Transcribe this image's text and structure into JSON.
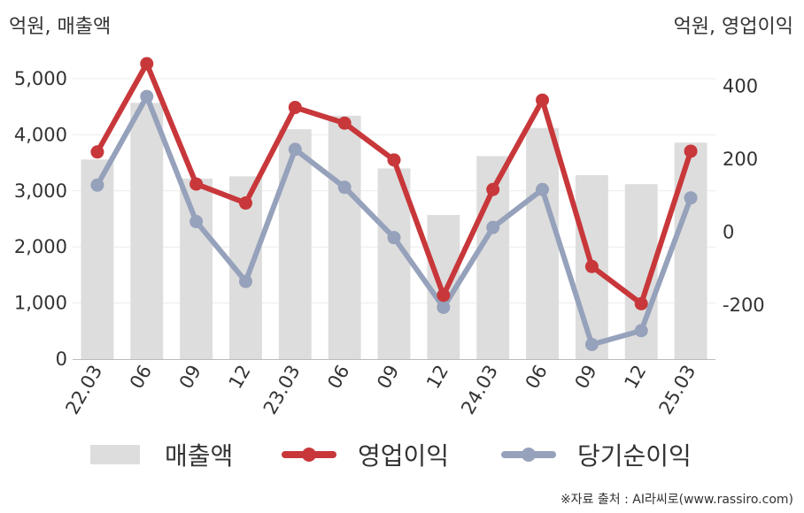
{
  "units": {
    "left": "억원, 매출액",
    "right": "억원, 영업이익"
  },
  "source": "※자료 출처 : AI라씨로(www.rassiro.com)",
  "colors": {
    "sales": "#dddddd",
    "operating": "#c8373a",
    "net": "#96a1bb",
    "grid": "#ececec",
    "axis": "#bbbbbb"
  },
  "chart_data": {
    "type": "bar",
    "categories": [
      "22.03",
      "06",
      "09",
      "12",
      "23.03",
      "06",
      "09",
      "12",
      "24.03",
      "06",
      "09",
      "12",
      "25.03"
    ],
    "left_axis": {
      "ylim": [
        0,
        5000
      ],
      "ticks": [
        0,
        1000,
        2000,
        3000,
        4000,
        5000
      ],
      "tick_labels": [
        "0",
        "1,000",
        "2,000",
        "3,000",
        "4,000",
        "5,000"
      ]
    },
    "right_axis": {
      "ylim": [
        -350,
        500
      ],
      "ticks": [
        -200,
        0,
        200,
        400
      ],
      "tick_labels": [
        "-200",
        "0",
        "200",
        "400"
      ]
    },
    "series": [
      {
        "name": "매출액",
        "type": "bar",
        "axis": "left",
        "values": [
          3560,
          4570,
          3220,
          3260,
          4100,
          4340,
          3400,
          2570,
          3620,
          4120,
          3280,
          3120,
          3860
        ]
      },
      {
        "name": "영업이익",
        "type": "line",
        "axis": "right",
        "values": [
          218,
          460,
          130,
          78,
          340,
          297,
          196,
          -175,
          115,
          360,
          -96,
          -198,
          220
        ]
      },
      {
        "name": "당기순이익",
        "type": "line",
        "axis": "right",
        "values": [
          127,
          370,
          27,
          -137,
          225,
          121,
          -17,
          -208,
          11,
          115,
          -310,
          -272,
          92
        ]
      }
    ],
    "grid": true,
    "legend": "bottom"
  }
}
